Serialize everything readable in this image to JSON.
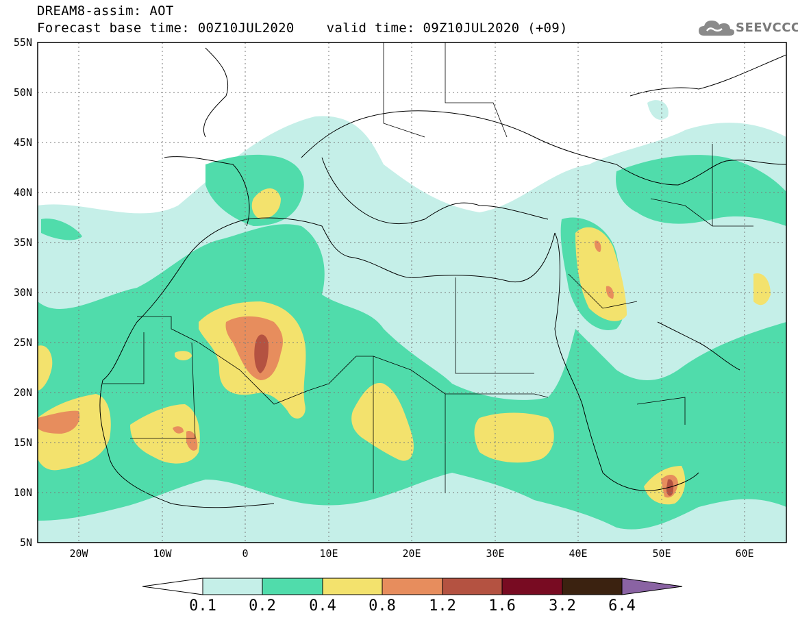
{
  "header": {
    "line1": "DREAM8-assim: AOT",
    "line2": "Forecast base time: 00Z10JUL2020    valid time: 09Z10JUL2020 (+09)"
  },
  "logo": {
    "text": "SEEVCCC",
    "icon": "cloud-icon"
  },
  "map": {
    "lat_labels": [
      "55N",
      "50N",
      "45N",
      "40N",
      "35N",
      "30N",
      "25N",
      "20N",
      "15N",
      "10N",
      "5N"
    ],
    "lon_labels": [
      "20W",
      "10W",
      "0",
      "10E",
      "20E",
      "30E",
      "40E",
      "50E",
      "60E"
    ],
    "lat_range": [
      5,
      55
    ],
    "lon_range": [
      -25,
      65
    ]
  },
  "colorbar": {
    "labels": [
      "0.1",
      "0.2",
      "0.4",
      "0.8",
      "1.2",
      "1.6",
      "3.2",
      "6.4"
    ],
    "colors": [
      "#ffffff",
      "#c5efe8",
      "#50dcab",
      "#f3e26d",
      "#e78d5d",
      "#b45241",
      "#780b22",
      "#3b2210",
      "#8a63a3"
    ]
  },
  "colors": {
    "land": "#ffffff",
    "border": "#000000",
    "grid": "#7a7a7a"
  }
}
